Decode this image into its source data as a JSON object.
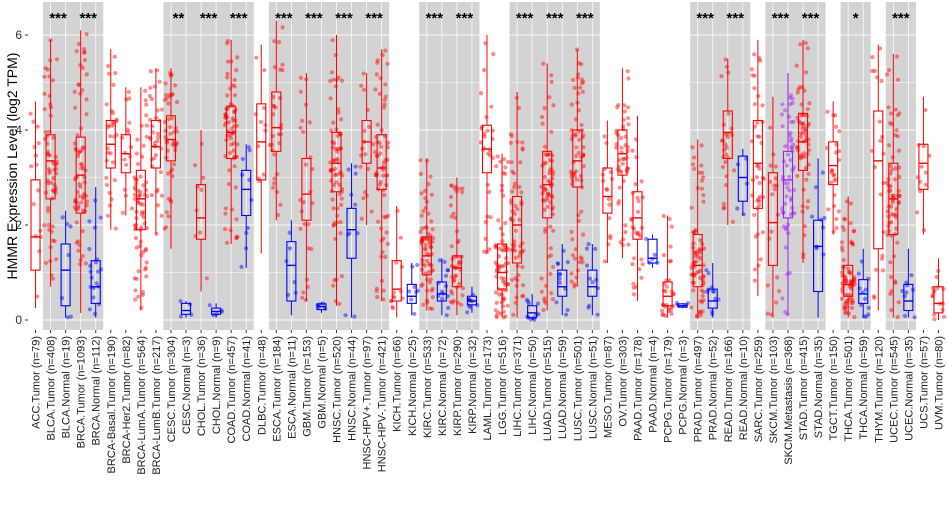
{
  "chart_data": {
    "type": "boxplot",
    "ylabel": "HMMR Expression Level (log2 TPM)",
    "ylim": [
      -0.2,
      6.6
    ],
    "yticks": [
      0,
      2,
      4,
      6
    ],
    "colors": {
      "tumor": "#ff0000",
      "normal": "#0000ff",
      "metastasis": "#a020f0",
      "shade": "#d3d3d3",
      "grid": "#ebebeb"
    },
    "groups": [
      {
        "label": "ACC.Tumor (n=79)",
        "type": "tumor",
        "q1": 1.05,
        "median": 1.75,
        "q3": 2.95,
        "lo": 0.25,
        "hi": 4.6,
        "sig": "",
        "shade": false
      },
      {
        "label": "BLCA.Tumor (n=408)",
        "type": "tumor",
        "q1": 2.55,
        "median": 3.35,
        "q3": 3.9,
        "lo": 0.7,
        "hi": 5.9,
        "sig": "***",
        "shade": true
      },
      {
        "label": "BLCA.Normal (n=19)",
        "type": "normal",
        "q1": 0.3,
        "median": 1.05,
        "q3": 1.6,
        "lo": 0.05,
        "hi": 2.3,
        "sig": "",
        "shade": true
      },
      {
        "label": "BRCA.Tumor (n=1093)",
        "type": "tumor",
        "q1": 2.25,
        "median": 3.05,
        "q3": 3.85,
        "lo": 0.15,
        "hi": 6.1,
        "sig": "***",
        "shade": true
      },
      {
        "label": "BRCA.Normal (n=112)",
        "type": "normal",
        "q1": 0.35,
        "median": 0.7,
        "q3": 1.25,
        "lo": 0.05,
        "hi": 2.8,
        "sig": "",
        "shade": true
      },
      {
        "label": "BRCA-Basal.Tumor (n=190)",
        "type": "tumor",
        "q1": 3.2,
        "median": 3.7,
        "q3": 4.2,
        "lo": 1.9,
        "hi": 5.7,
        "sig": "",
        "shade": false
      },
      {
        "label": "BRCA-Her2.Tumor (n=82)",
        "type": "tumor",
        "q1": 3.1,
        "median": 3.5,
        "q3": 3.9,
        "lo": 2.2,
        "hi": 4.9,
        "sig": "",
        "shade": false
      },
      {
        "label": "BRCA-LumA.Tumor (n=564)",
        "type": "tumor",
        "q1": 1.9,
        "median": 2.55,
        "q3": 3.15,
        "lo": 0.2,
        "hi": 4.9,
        "sig": "",
        "shade": false
      },
      {
        "label": "BRCA-LumB.Tumor (n=217)",
        "type": "tumor",
        "q1": 3.2,
        "median": 3.65,
        "q3": 4.2,
        "lo": 1.8,
        "hi": 5.3,
        "sig": "",
        "shade": false
      },
      {
        "label": "CESC.Tumor (n=304)",
        "type": "tumor",
        "q1": 3.35,
        "median": 3.8,
        "q3": 4.3,
        "lo": 1.5,
        "hi": 5.3,
        "sig": "**",
        "shade": true
      },
      {
        "label": "CESC.Normal (n=3)",
        "type": "normal",
        "q1": 0.12,
        "median": 0.2,
        "q3": 0.35,
        "lo": 0.05,
        "hi": 0.4,
        "sig": "",
        "shade": true
      },
      {
        "label": "CHOL.Tumor (n=36)",
        "type": "tumor",
        "q1": 1.7,
        "median": 2.15,
        "q3": 2.85,
        "lo": 0.6,
        "hi": 4.0,
        "sig": "***",
        "shade": true
      },
      {
        "label": "CHOL.Normal (n=9)",
        "type": "normal",
        "q1": 0.12,
        "median": 0.18,
        "q3": 0.25,
        "lo": 0.05,
        "hi": 0.35,
        "sig": "",
        "shade": true
      },
      {
        "label": "COAD.Tumor (n=457)",
        "type": "tumor",
        "q1": 3.4,
        "median": 3.95,
        "q3": 4.5,
        "lo": 1.6,
        "hi": 5.9,
        "sig": "***",
        "shade": true
      },
      {
        "label": "COAD.Normal (n=41)",
        "type": "normal",
        "q1": 2.2,
        "median": 2.75,
        "q3": 3.15,
        "lo": 1.1,
        "hi": 3.7,
        "sig": "",
        "shade": true
      },
      {
        "label": "DLBC.Tumor (n=48)",
        "type": "tumor",
        "q1": 2.95,
        "median": 3.75,
        "q3": 4.55,
        "lo": 1.4,
        "hi": 5.8,
        "sig": "",
        "shade": false
      },
      {
        "label": "ESCA.Tumor (n=184)",
        "type": "tumor",
        "q1": 3.55,
        "median": 4.05,
        "q3": 4.8,
        "lo": 2.1,
        "hi": 6.3,
        "sig": "***",
        "shade": true
      },
      {
        "label": "ESCA.Normal (n=11)",
        "type": "normal",
        "q1": 0.4,
        "median": 1.15,
        "q3": 1.65,
        "lo": 0.1,
        "hi": 2.1,
        "sig": "",
        "shade": true
      },
      {
        "label": "GBM.Tumor (n=153)",
        "type": "tumor",
        "q1": 2.1,
        "median": 2.65,
        "q3": 3.4,
        "lo": 0.4,
        "hi": 5.2,
        "sig": "***",
        "shade": true
      },
      {
        "label": "GBM.Normal (n=5)",
        "type": "normal",
        "q1": 0.22,
        "median": 0.28,
        "q3": 0.34,
        "lo": 0.15,
        "hi": 0.38,
        "sig": "",
        "shade": true
      },
      {
        "label": "HNSC.Tumor (n=520)",
        "type": "tumor",
        "q1": 2.7,
        "median": 3.3,
        "q3": 3.95,
        "lo": 0.3,
        "hi": 6.0,
        "sig": "***",
        "shade": true
      },
      {
        "label": "HNSC.Normal (n=44)",
        "type": "normal",
        "q1": 1.3,
        "median": 1.9,
        "q3": 2.35,
        "lo": 0.05,
        "hi": 3.3,
        "sig": "",
        "shade": true
      },
      {
        "label": "HNSC-HPV+.Tumor (n=97)",
        "type": "tumor",
        "q1": 3.3,
        "median": 3.75,
        "q3": 4.2,
        "lo": 2.0,
        "hi": 5.2,
        "sig": "***",
        "shade": true
      },
      {
        "label": "HNSC-HPV-.Tumor (n=421)",
        "type": "tumor",
        "q1": 2.75,
        "median": 3.2,
        "q3": 3.9,
        "lo": 0.4,
        "hi": 5.7,
        "sig": "",
        "shade": true
      },
      {
        "label": "KICH.Tumor (n=66)",
        "type": "tumor",
        "q1": 0.4,
        "median": 0.65,
        "q3": 1.25,
        "lo": 0.05,
        "hi": 2.4,
        "sig": "",
        "shade": false
      },
      {
        "label": "KICH.Normal (n=25)",
        "type": "normal",
        "q1": 0.35,
        "median": 0.5,
        "q3": 0.75,
        "lo": 0.1,
        "hi": 1.2,
        "sig": "",
        "shade": false
      },
      {
        "label": "KIRC.Tumor (n=533)",
        "type": "tumor",
        "q1": 0.95,
        "median": 1.35,
        "q3": 1.75,
        "lo": 0.2,
        "hi": 3.4,
        "sig": "***",
        "shade": true
      },
      {
        "label": "KIRC.Normal (n=72)",
        "type": "normal",
        "q1": 0.4,
        "median": 0.55,
        "q3": 0.8,
        "lo": 0.1,
        "hi": 1.3,
        "sig": "",
        "shade": true
      },
      {
        "label": "KIRP.Tumor (n=290)",
        "type": "tumor",
        "q1": 0.7,
        "median": 1.1,
        "q3": 1.35,
        "lo": 0.1,
        "hi": 3.0,
        "sig": "***",
        "shade": true
      },
      {
        "label": "KIRP.Normal (n=32)",
        "type": "normal",
        "q1": 0.32,
        "median": 0.4,
        "q3": 0.5,
        "lo": 0.15,
        "hi": 0.7,
        "sig": "",
        "shade": true
      },
      {
        "label": "LAML.Tumor (n=173)",
        "type": "tumor",
        "q1": 3.1,
        "median": 3.6,
        "q3": 4.1,
        "lo": 1.4,
        "hi": 6.0,
        "sig": "",
        "shade": false
      },
      {
        "label": "LGG.Tumor (n=516)",
        "type": "tumor",
        "q1": 0.65,
        "median": 1.0,
        "q3": 1.6,
        "lo": 0.05,
        "hi": 3.5,
        "sig": "",
        "shade": false
      },
      {
        "label": "LIHC.Tumor (n=371)",
        "type": "tumor",
        "q1": 1.2,
        "median": 2.0,
        "q3": 2.6,
        "lo": 0.05,
        "hi": 4.8,
        "sig": "***",
        "shade": true
      },
      {
        "label": "LIHC.Normal (n=50)",
        "type": "normal",
        "q1": 0.05,
        "median": 0.15,
        "q3": 0.3,
        "lo": 0.0,
        "hi": 0.55,
        "sig": "",
        "shade": true
      },
      {
        "label": "LUAD.Tumor (n=515)",
        "type": "tumor",
        "q1": 2.15,
        "median": 2.85,
        "q3": 3.55,
        "lo": 0.2,
        "hi": 5.4,
        "sig": "***",
        "shade": true
      },
      {
        "label": "LUAD.Normal (n=59)",
        "type": "normal",
        "q1": 0.5,
        "median": 0.7,
        "q3": 1.05,
        "lo": 0.1,
        "hi": 1.6,
        "sig": "",
        "shade": true
      },
      {
        "label": "LUSC.Tumor (n=501)",
        "type": "tumor",
        "q1": 2.8,
        "median": 3.35,
        "q3": 4.0,
        "lo": 0.7,
        "hi": 5.7,
        "sig": "***",
        "shade": true
      },
      {
        "label": "LUSC.Normal (n=51)",
        "type": "normal",
        "q1": 0.5,
        "median": 0.7,
        "q3": 1.05,
        "lo": 0.1,
        "hi": 1.6,
        "sig": "",
        "shade": true
      },
      {
        "label": "MESO.Tumor (n=87)",
        "type": "tumor",
        "q1": 2.25,
        "median": 2.6,
        "q3": 3.2,
        "lo": 1.2,
        "hi": 4.2,
        "sig": "",
        "shade": false
      },
      {
        "label": "OV.Tumor (n=303)",
        "type": "tumor",
        "q1": 3.05,
        "median": 3.5,
        "q3": 4.0,
        "lo": 1.3,
        "hi": 5.3,
        "sig": "",
        "shade": false
      },
      {
        "label": "PAAD.Tumor (n=178)",
        "type": "tumor",
        "q1": 1.7,
        "median": 2.15,
        "q3": 2.7,
        "lo": 0.4,
        "hi": 4.3,
        "sig": "",
        "shade": false
      },
      {
        "label": "PAAD.Normal (n=4)",
        "type": "normal",
        "q1": 1.2,
        "median": 1.3,
        "q3": 1.7,
        "lo": 1.1,
        "hi": 1.8,
        "sig": "",
        "shade": false
      },
      {
        "label": "PCPG.Tumor (n=179)",
        "type": "tumor",
        "q1": 0.3,
        "median": 0.5,
        "q3": 0.8,
        "lo": 0.05,
        "hi": 2.2,
        "sig": "",
        "shade": false
      },
      {
        "label": "PCPG.Normal (n=3)",
        "type": "normal",
        "q1": 0.27,
        "median": 0.3,
        "q3": 0.34,
        "lo": 0.25,
        "hi": 0.36,
        "sig": "",
        "shade": false
      },
      {
        "label": "PRAD.Tumor (n=497)",
        "type": "tumor",
        "q1": 0.7,
        "median": 1.15,
        "q3": 1.8,
        "lo": 0.05,
        "hi": 3.8,
        "sig": "***",
        "shade": true
      },
      {
        "label": "PRAD.Normal (n=52)",
        "type": "normal",
        "q1": 0.25,
        "median": 0.4,
        "q3": 0.65,
        "lo": 0.05,
        "hi": 1.2,
        "sig": "",
        "shade": true
      },
      {
        "label": "READ.Tumor (n=166)",
        "type": "tumor",
        "q1": 3.4,
        "median": 3.95,
        "q3": 4.4,
        "lo": 2.0,
        "hi": 5.5,
        "sig": "***",
        "shade": true
      },
      {
        "label": "READ.Normal (n=10)",
        "type": "normal",
        "q1": 2.5,
        "median": 3.0,
        "q3": 3.45,
        "lo": 2.2,
        "hi": 3.6,
        "sig": "",
        "shade": true
      },
      {
        "label": "SARC.Tumor (n=259)",
        "type": "tumor",
        "q1": 2.35,
        "median": 3.3,
        "q3": 4.2,
        "lo": 0.5,
        "hi": 5.9,
        "sig": "",
        "shade": false
      },
      {
        "label": "SKCM.Tumor (n=103)",
        "type": "tumor",
        "q1": 1.15,
        "median": 2.05,
        "q3": 3.1,
        "lo": 0.05,
        "hi": 4.7,
        "sig": "***",
        "shade": true
      },
      {
        "label": "SKCM.Metastasis (n=368)",
        "type": "metastasis",
        "q1": 2.15,
        "median": 2.95,
        "q3": 3.55,
        "lo": 0.1,
        "hi": 5.2,
        "sig": "",
        "shade": true
      },
      {
        "label": "STAD.Tumor (n=415)",
        "type": "tumor",
        "q1": 3.15,
        "median": 3.75,
        "q3": 4.35,
        "lo": 1.2,
        "hi": 5.9,
        "sig": "***",
        "shade": true
      },
      {
        "label": "STAD.Normal (n=35)",
        "type": "normal",
        "q1": 0.6,
        "median": 1.55,
        "q3": 2.1,
        "lo": 0.05,
        "hi": 3.4,
        "sig": "",
        "shade": true
      },
      {
        "label": "TGCT.Tumor (n=150)",
        "type": "tumor",
        "q1": 2.85,
        "median": 3.25,
        "q3": 3.75,
        "lo": 1.8,
        "hi": 4.6,
        "sig": "",
        "shade": false
      },
      {
        "label": "THCA.Tumor (n=501)",
        "type": "tumor",
        "q1": 0.5,
        "median": 0.75,
        "q3": 1.15,
        "lo": 0.05,
        "hi": 2.6,
        "sig": "*",
        "shade": true
      },
      {
        "label": "THCA.Normal (n=59)",
        "type": "normal",
        "q1": 0.35,
        "median": 0.55,
        "q3": 0.85,
        "lo": 0.05,
        "hi": 1.5,
        "sig": "",
        "shade": true
      },
      {
        "label": "THYM.Tumor (n=120)",
        "type": "tumor",
        "q1": 1.5,
        "median": 3.35,
        "q3": 4.4,
        "lo": 0.2,
        "hi": 5.8,
        "sig": "",
        "shade": false
      },
      {
        "label": "UCEC.Tumor (n=545)",
        "type": "tumor",
        "q1": 1.8,
        "median": 2.55,
        "q3": 3.3,
        "lo": 0.05,
        "hi": 5.6,
        "sig": "***",
        "shade": true
      },
      {
        "label": "UCEC.Normal (n=35)",
        "type": "normal",
        "q1": 0.2,
        "median": 0.4,
        "q3": 0.75,
        "lo": 0.05,
        "hi": 1.5,
        "sig": "",
        "shade": true
      },
      {
        "label": "UCS.Tumor (n=57)",
        "type": "tumor",
        "q1": 2.75,
        "median": 3.3,
        "q3": 3.7,
        "lo": 1.8,
        "hi": 4.7,
        "sig": "",
        "shade": false
      },
      {
        "label": "UVM.Tumor (n=80)",
        "type": "tumor",
        "q1": 0.15,
        "median": 0.35,
        "q3": 0.7,
        "lo": 0.0,
        "hi": 1.3,
        "sig": "",
        "shade": false
      }
    ]
  }
}
